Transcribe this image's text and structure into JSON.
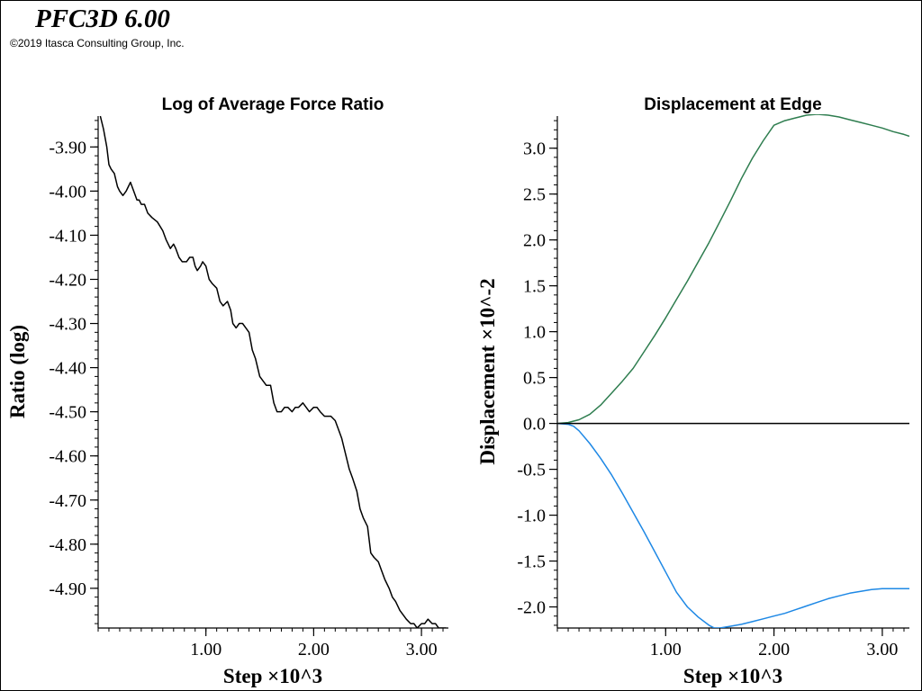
{
  "header": {
    "app_title": "PFC3D 6.00",
    "copyright": "©2019 Itasca Consulting Group, Inc."
  },
  "colors": {
    "curve_black": "#000000",
    "series_green": "#2e7d4f",
    "series_blue": "#1e88e5"
  },
  "chart_data": [
    {
      "type": "line",
      "title": "Log of Average Force Ratio",
      "xlabel": "Step ×10^3",
      "ylabel": "Ratio (log)",
      "xlim": [
        0.0,
        3.25
      ],
      "ylim": [
        -4.99,
        -3.83
      ],
      "x_ticks": [
        1.0,
        2.0,
        3.0
      ],
      "x_tick_labels": [
        "1.00",
        "2.00",
        "3.00"
      ],
      "y_ticks": [
        -3.9,
        -4.0,
        -4.1,
        -4.2,
        -4.3,
        -4.4,
        -4.5,
        -4.6,
        -4.7,
        -4.8,
        -4.9
      ],
      "y_tick_labels": [
        "-3.90",
        "-4.00",
        "-4.10",
        "-4.20",
        "-4.30",
        "-4.40",
        "-4.50",
        "-4.60",
        "-4.70",
        "-4.80",
        "-4.90"
      ],
      "grid": false,
      "series": [
        {
          "color": "#000000",
          "x": [
            0.02,
            0.05,
            0.08,
            0.1,
            0.12,
            0.15,
            0.18,
            0.2,
            0.23,
            0.26,
            0.28,
            0.3,
            0.33,
            0.36,
            0.38,
            0.4,
            0.43,
            0.46,
            0.5,
            0.55,
            0.6,
            0.63,
            0.67,
            0.7,
            0.72,
            0.75,
            0.78,
            0.82,
            0.85,
            0.88,
            0.9,
            0.92,
            0.95,
            0.97,
            1.0,
            1.03,
            1.06,
            1.1,
            1.13,
            1.16,
            1.2,
            1.23,
            1.25,
            1.28,
            1.31,
            1.34,
            1.37,
            1.4,
            1.43,
            1.46,
            1.5,
            1.53,
            1.56,
            1.6,
            1.63,
            1.66,
            1.7,
            1.73,
            1.76,
            1.8,
            1.83,
            1.86,
            1.9,
            1.93,
            1.96,
            2.0,
            2.03,
            2.06,
            2.1,
            2.13,
            2.16,
            2.2,
            2.23,
            2.26,
            2.3,
            2.33,
            2.36,
            2.4,
            2.43,
            2.46,
            2.5,
            2.53,
            2.56,
            2.6,
            2.63,
            2.66,
            2.7,
            2.73,
            2.76,
            2.8,
            2.83,
            2.86,
            2.9,
            2.93,
            2.96,
            3.0,
            3.03,
            3.06,
            3.1,
            3.13,
            3.16,
            3.2,
            3.23
          ],
          "y": [
            -3.83,
            -3.86,
            -3.9,
            -3.94,
            -3.95,
            -3.96,
            -3.99,
            -4.0,
            -4.01,
            -4.0,
            -3.99,
            -3.98,
            -4.0,
            -4.02,
            -4.02,
            -4.03,
            -4.03,
            -4.05,
            -4.06,
            -4.07,
            -4.09,
            -4.11,
            -4.13,
            -4.12,
            -4.13,
            -4.15,
            -4.16,
            -4.16,
            -4.15,
            -4.15,
            -4.17,
            -4.18,
            -4.17,
            -4.16,
            -4.17,
            -4.2,
            -4.21,
            -4.22,
            -4.25,
            -4.26,
            -4.25,
            -4.27,
            -4.3,
            -4.31,
            -4.3,
            -4.3,
            -4.31,
            -4.32,
            -4.36,
            -4.38,
            -4.42,
            -4.43,
            -4.44,
            -4.44,
            -4.48,
            -4.5,
            -4.5,
            -4.49,
            -4.49,
            -4.5,
            -4.49,
            -4.49,
            -4.48,
            -4.49,
            -4.5,
            -4.49,
            -4.49,
            -4.5,
            -4.51,
            -4.51,
            -4.51,
            -4.52,
            -4.54,
            -4.56,
            -4.6,
            -4.63,
            -4.65,
            -4.68,
            -4.72,
            -4.74,
            -4.76,
            -4.82,
            -4.83,
            -4.84,
            -4.86,
            -4.88,
            -4.9,
            -4.92,
            -4.93,
            -4.95,
            -4.96,
            -4.97,
            -4.98,
            -4.98,
            -4.99,
            -4.98,
            -4.98,
            -4.97,
            -4.98,
            -4.98,
            -4.99,
            -4.99,
            -4.99
          ]
        }
      ]
    },
    {
      "type": "line",
      "title": "Displacement at Edge",
      "xlabel": "Step ×10^3",
      "ylabel": "Displacement ×10^-2",
      "xlim": [
        0.0,
        3.25
      ],
      "ylim": [
        -2.23,
        3.35
      ],
      "x_ticks": [
        1.0,
        2.0,
        3.0
      ],
      "x_tick_labels": [
        "1.00",
        "2.00",
        "3.00"
      ],
      "y_ticks": [
        3.0,
        2.5,
        2.0,
        1.5,
        1.0,
        0.5,
        0.0,
        -0.5,
        -1.0,
        -1.5,
        -2.0
      ],
      "y_tick_labels": [
        "3.0",
        "2.5",
        "2.0",
        "1.5",
        "1.0",
        "0.5",
        "0.0",
        "-0.5",
        "-1.0",
        "-1.5",
        "-2.0"
      ],
      "grid": false,
      "series": [
        {
          "color": "#2e7d4f",
          "x": [
            0.0,
            0.1,
            0.2,
            0.3,
            0.4,
            0.5,
            0.6,
            0.7,
            0.8,
            0.9,
            1.0,
            1.1,
            1.2,
            1.3,
            1.4,
            1.5,
            1.6,
            1.7,
            1.8,
            1.9,
            2.0,
            2.1,
            2.2,
            2.3,
            2.4,
            2.5,
            2.6,
            2.7,
            2.8,
            2.9,
            3.0,
            3.1,
            3.2,
            3.25
          ],
          "y": [
            0.0,
            0.01,
            0.04,
            0.1,
            0.2,
            0.33,
            0.46,
            0.6,
            0.78,
            0.96,
            1.15,
            1.35,
            1.55,
            1.76,
            1.97,
            2.2,
            2.43,
            2.67,
            2.89,
            3.08,
            3.25,
            3.3,
            3.33,
            3.36,
            3.37,
            3.36,
            3.34,
            3.31,
            3.28,
            3.25,
            3.22,
            3.18,
            3.15,
            3.13
          ]
        },
        {
          "color": "#1e88e5",
          "x": [
            0.0,
            0.1,
            0.15,
            0.2,
            0.3,
            0.4,
            0.5,
            0.6,
            0.7,
            0.8,
            0.9,
            1.0,
            1.1,
            1.2,
            1.3,
            1.4,
            1.45,
            1.5,
            1.6,
            1.7,
            1.8,
            1.9,
            2.0,
            2.1,
            2.2,
            2.3,
            2.4,
            2.5,
            2.6,
            2.7,
            2.8,
            2.9,
            3.0,
            3.1,
            3.2,
            3.25
          ],
          "y": [
            0.0,
            -0.01,
            -0.03,
            -0.08,
            -0.22,
            -0.38,
            -0.56,
            -0.76,
            -0.97,
            -1.18,
            -1.4,
            -1.62,
            -1.84,
            -2.0,
            -2.11,
            -2.2,
            -2.23,
            -2.23,
            -2.21,
            -2.19,
            -2.16,
            -2.13,
            -2.1,
            -2.07,
            -2.03,
            -1.99,
            -1.95,
            -1.91,
            -1.88,
            -1.85,
            -1.83,
            -1.81,
            -1.8,
            -1.8,
            -1.8,
            -1.8
          ]
        },
        {
          "color": "#000000",
          "x": [
            0.0,
            3.25
          ],
          "y": [
            0.0,
            0.0
          ]
        }
      ]
    }
  ]
}
